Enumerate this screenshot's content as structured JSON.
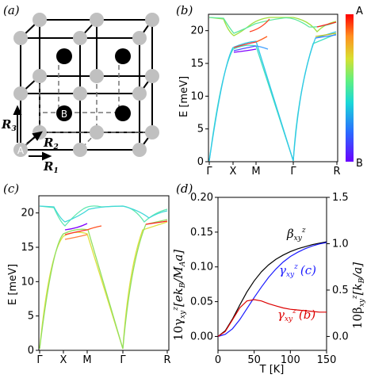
{
  "panels": {
    "a": {
      "label": "(a)",
      "site_A": "A",
      "site_B": "B",
      "vec1": "R",
      "vec1_sub": "1",
      "vec2": "R",
      "vec2_sub": "2",
      "vec3": "R",
      "vec3_sub": "3"
    },
    "b": {
      "label": "(b)",
      "ylabel": "E [meV]",
      "colorbar_top": "A",
      "colorbar_bottom": "B"
    },
    "c": {
      "label": "(c)",
      "ylabel": "E [meV]"
    },
    "d": {
      "label": "(d)",
      "xlabel": "T [K]",
      "ylabel_left": "10γ",
      "ylabel_left_rest": "[ek",
      "ylabel_left_tail": "/M",
      "ylabel_left_end": "a]",
      "ylabel_right": "10β",
      "ylabel_right_rest": "[k",
      "ylabel_right_end": "/a]",
      "beta_label": "β",
      "gamma_c_label": "γ",
      "gamma_c_suffix": "(c)",
      "gamma_b_label": "γ",
      "gamma_b_suffix": "(b)"
    }
  },
  "chart_data": [
    {
      "panel": "b",
      "type": "line",
      "xtick_labels": [
        "Γ",
        "X",
        "M",
        "Γ",
        "R"
      ],
      "yticks": [
        0,
        5,
        10,
        15,
        20
      ],
      "ylim": [
        0,
        22.5
      ],
      "ylabel": "E [meV]",
      "colors": {
        "A": "#ff0000",
        "B": "#6a00ff"
      }
    },
    {
      "panel": "c",
      "type": "line",
      "xtick_labels": [
        "Γ",
        "X",
        "M",
        "Γ",
        "R"
      ],
      "yticks": [
        0,
        5,
        10,
        15,
        20
      ],
      "ylim": [
        0,
        22.5
      ],
      "ylabel": "E [meV]"
    },
    {
      "panel": "d",
      "type": "line",
      "xlabel": "T [K]",
      "xlim": [
        0,
        150
      ],
      "xticks": [
        0,
        50,
        100,
        150
      ],
      "ylim_left": [
        -0.02,
        0.2
      ],
      "yticks_left": [
        "0.00",
        "0.05",
        "0.10",
        "0.15",
        "0.20"
      ],
      "ylim_right": [
        -0.15,
        1.5
      ],
      "yticks_right": [
        "0.0",
        "0.5",
        "1.0",
        "1.5"
      ],
      "series": [
        {
          "name": "βxy z",
          "color": "#000000",
          "x": [
            0,
            10,
            20,
            30,
            40,
            50,
            60,
            70,
            80,
            90,
            100,
            110,
            120,
            130,
            140,
            150
          ],
          "values": [
            0.0,
            0.008,
            0.025,
            0.045,
            0.064,
            0.08,
            0.093,
            0.103,
            0.111,
            0.117,
            0.122,
            0.126,
            0.129,
            0.132,
            0.134,
            0.136
          ]
        },
        {
          "name": "γxy z (c)",
          "color": "#1a1aff",
          "x": [
            0,
            10,
            20,
            30,
            40,
            50,
            60,
            70,
            80,
            90,
            100,
            110,
            120,
            130,
            140,
            150
          ],
          "values": [
            0.0,
            0.003,
            0.011,
            0.024,
            0.04,
            0.056,
            0.071,
            0.085,
            0.097,
            0.107,
            0.115,
            0.121,
            0.126,
            0.13,
            0.133,
            0.135
          ]
        },
        {
          "name": "γxy z (b)",
          "color": "#dd0000",
          "x": [
            0,
            10,
            20,
            30,
            40,
            50,
            60,
            70,
            80,
            90,
            100,
            110,
            120,
            130,
            140,
            150
          ],
          "values": [
            0.0,
            0.007,
            0.024,
            0.041,
            0.051,
            0.053,
            0.051,
            0.047,
            0.044,
            0.041,
            0.039,
            0.038,
            0.037,
            0.036,
            0.035,
            0.035
          ]
        }
      ]
    }
  ]
}
